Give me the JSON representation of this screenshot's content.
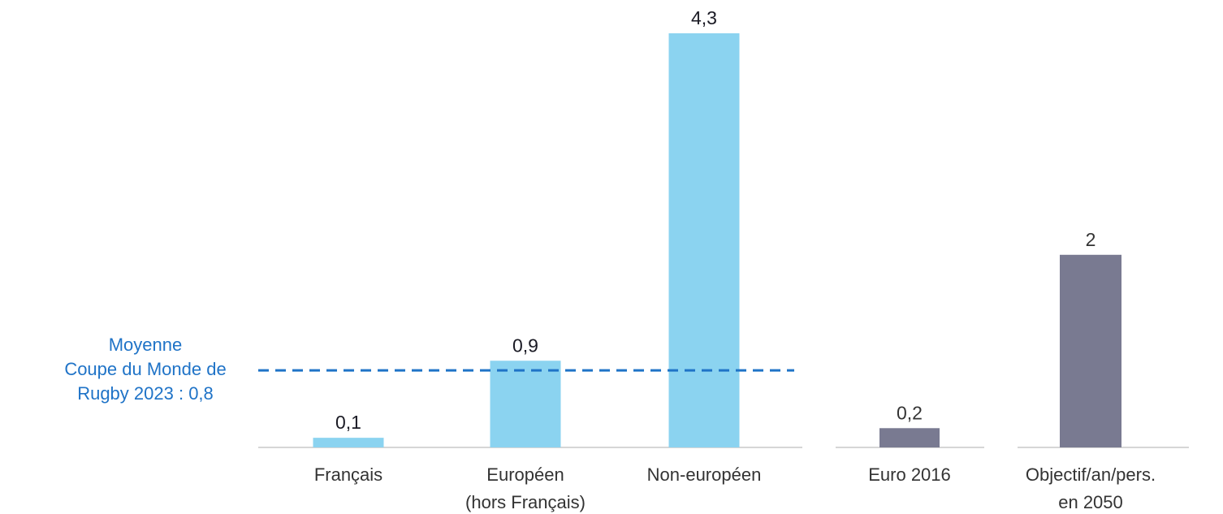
{
  "chart_data": {
    "type": "bar",
    "groups": [
      {
        "categories": [
          [
            "Français"
          ],
          [
            "Européen",
            "(hors Français)"
          ],
          [
            "Non-européen"
          ]
        ],
        "values": [
          0.1,
          0.9,
          4.3
        ],
        "value_labels": [
          "0,1",
          "0,9",
          "4,3"
        ],
        "color": "#8bd3f0",
        "label_color": "#1a1a24"
      },
      {
        "categories": [
          [
            "Euro 2016"
          ]
        ],
        "values": [
          0.2
        ],
        "value_labels": [
          "0,2"
        ],
        "color": "#797a91",
        "label_color": "#333333"
      },
      {
        "categories": [
          [
            "Objectif/an/pers.",
            "en 2050"
          ]
        ],
        "values": [
          2
        ],
        "value_labels": [
          "2"
        ],
        "color": "#797a91",
        "label_color": "#333333"
      }
    ],
    "reference_line": {
      "value": 0.8,
      "label_lines": [
        "Moyenne",
        "Coupe du Monde de",
        "Rugby 2023 : 0,8"
      ],
      "color": "#1f73c7",
      "style": "dashed"
    },
    "ylim": [
      0,
      4.3
    ],
    "grid": false,
    "title": "",
    "xlabel": "",
    "ylabel": ""
  }
}
